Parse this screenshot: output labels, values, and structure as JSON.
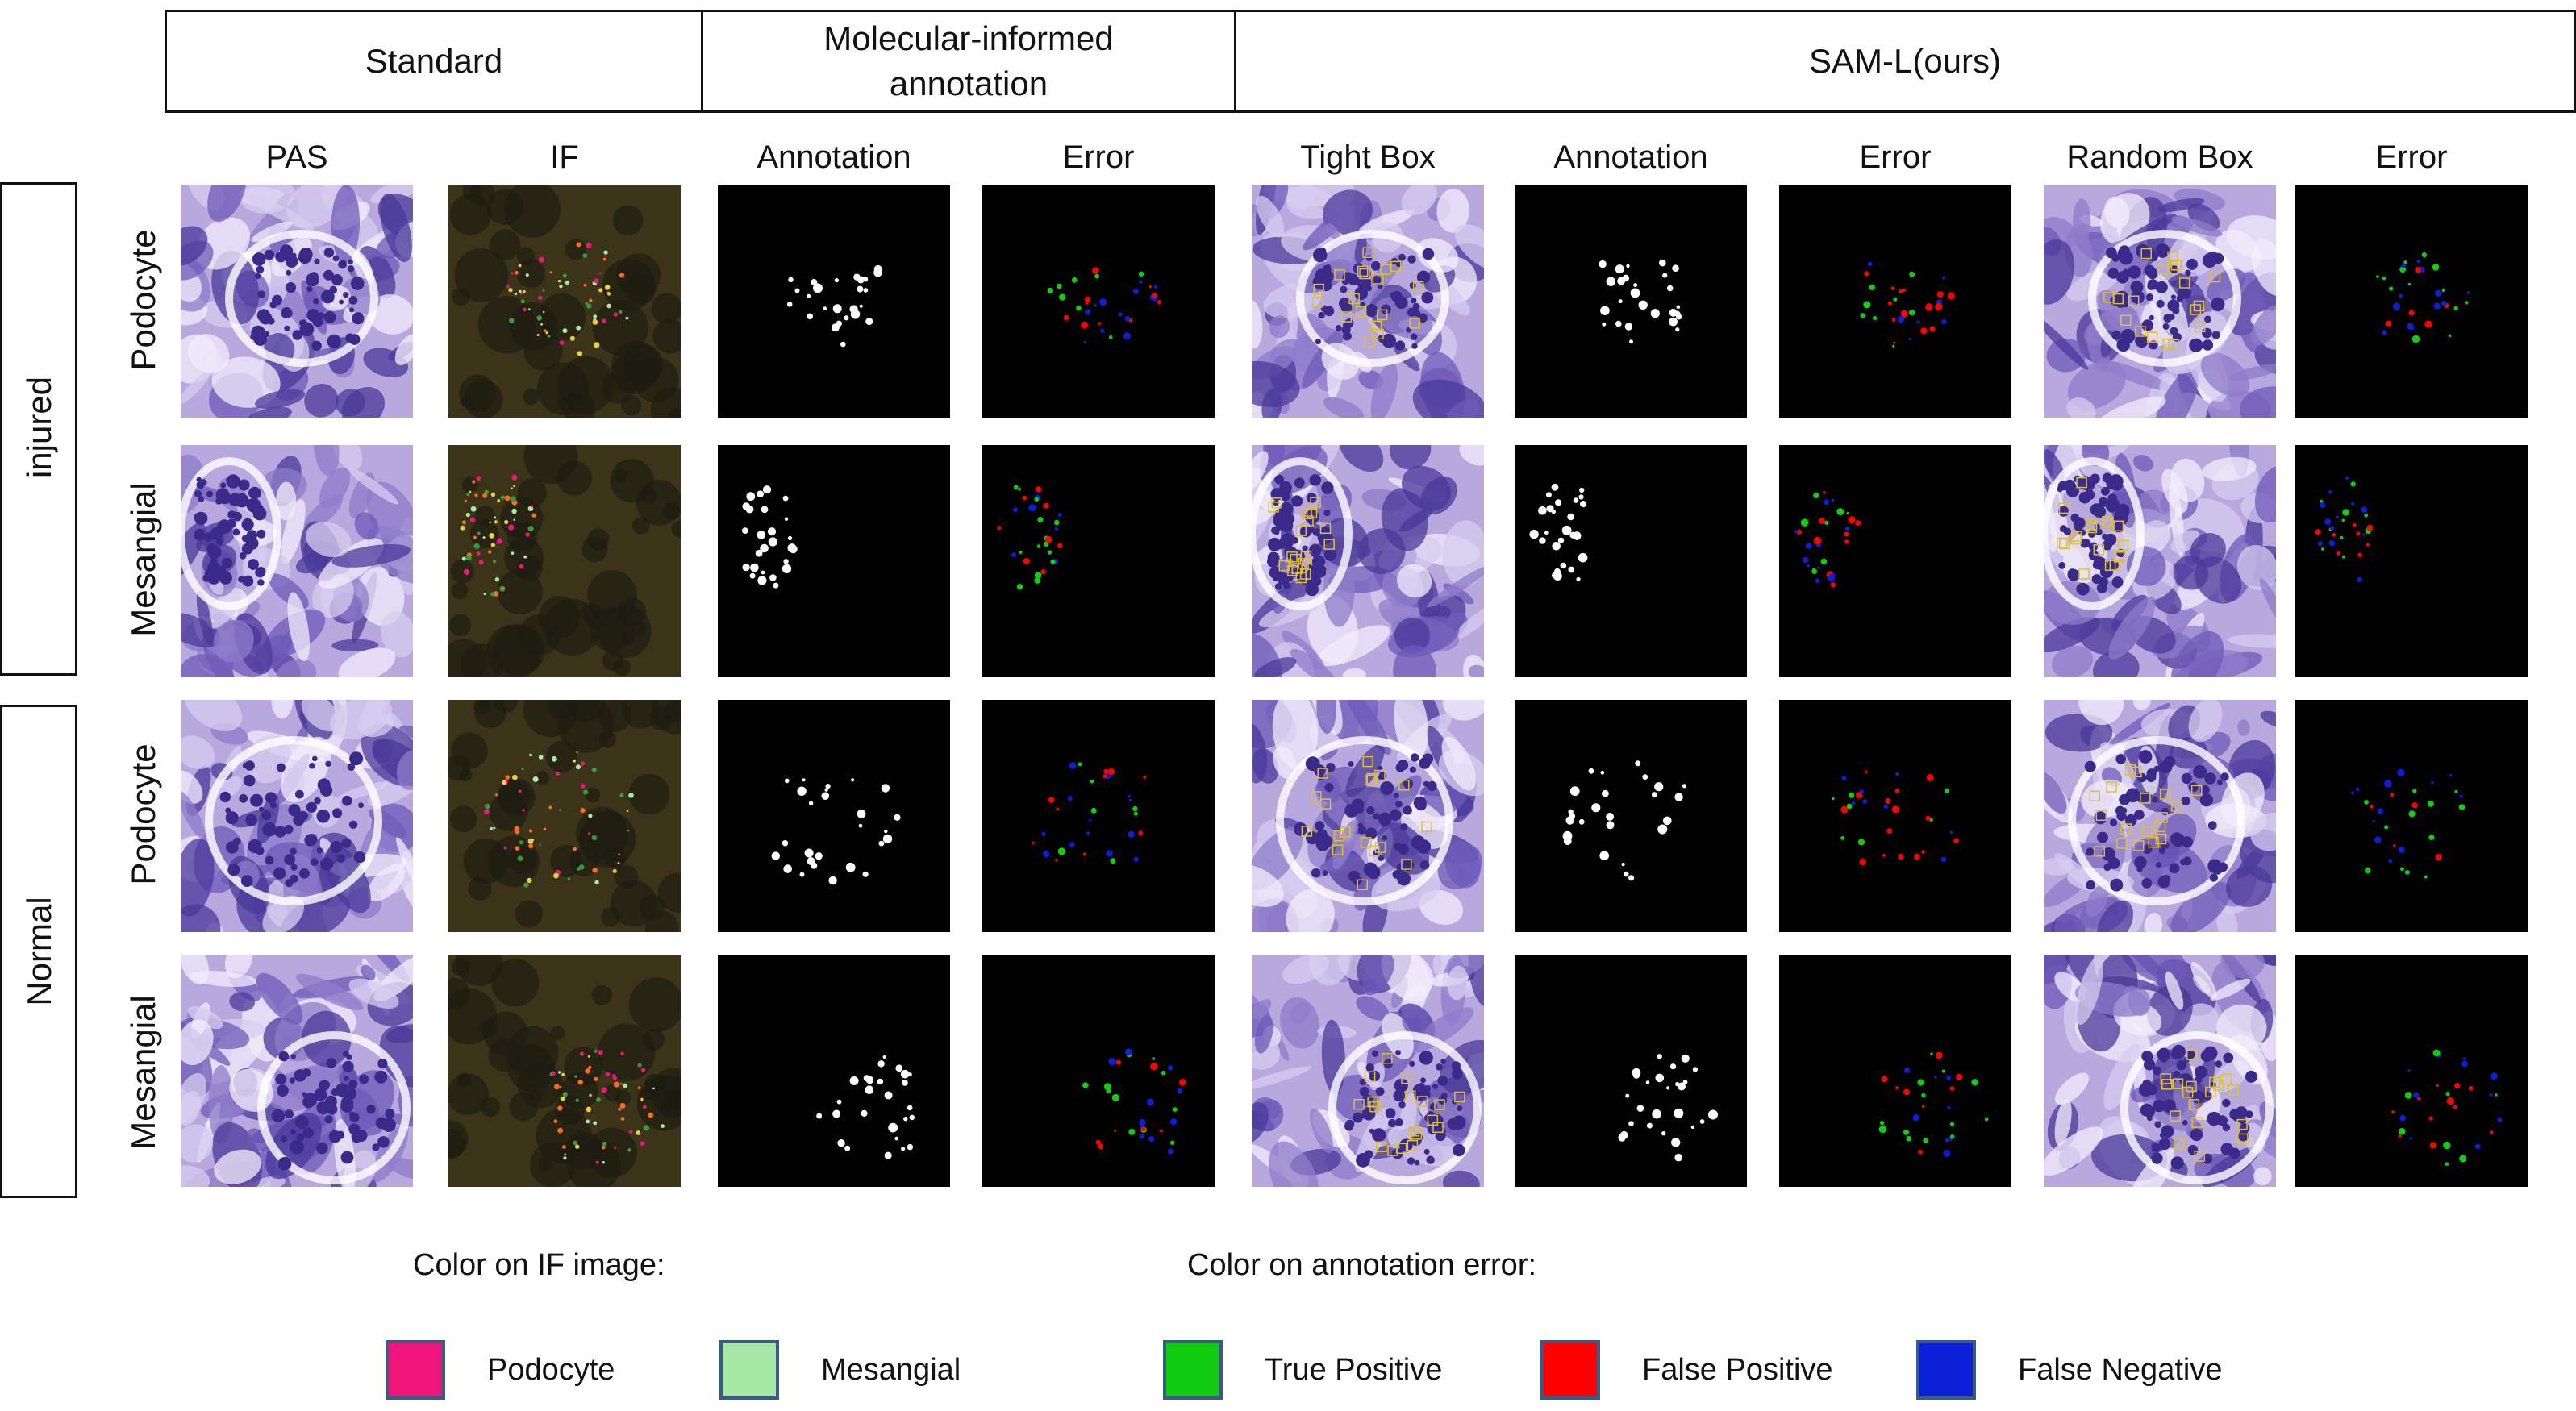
{
  "header": {
    "groups": [
      {
        "label": "Standard"
      },
      {
        "label": "Molecular-informed annotation"
      },
      {
        "label": "SAM-L(ours)"
      }
    ]
  },
  "columns": [
    "PAS",
    "IF",
    "Annotation",
    "Error",
    "Tight Box",
    "Annotation",
    "Error",
    "Random Box",
    "Error"
  ],
  "groups": [
    {
      "label": "injured",
      "rows": [
        "Podocyte",
        "Mesangial"
      ]
    },
    {
      "label": "Normal",
      "rows": [
        "Podocyte",
        "Mesangial"
      ]
    }
  ],
  "legend": {
    "if_title": "Color on IF image:",
    "error_title": "Color on annotation error:",
    "items": [
      {
        "label": "Podocyte",
        "color": "#f0157a"
      },
      {
        "label": "Mesangial",
        "color": "#a6e9a6"
      },
      {
        "label": "True Positive",
        "color": "#11cc11"
      },
      {
        "label": "False Positive",
        "color": "#ff0000"
      },
      {
        "label": "False Negative",
        "color": "#0a1fd6"
      }
    ]
  },
  "colors": {
    "pas_bg": "#b7a9de",
    "pas_dark": "#3a2a8a",
    "if_bg": "#3c3418",
    "mask_bg": "#000000",
    "mask_fg": "#ffffff",
    "box_outline": "#e0c030"
  },
  "tile_kinds": [
    "pas",
    "if",
    "mask",
    "error",
    "pas-box",
    "mask",
    "error",
    "pas-box",
    "error"
  ]
}
